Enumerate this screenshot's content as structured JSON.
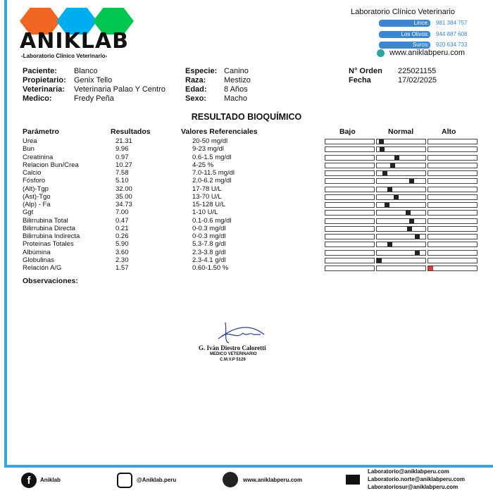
{
  "header": {
    "brand": "ANIKLAB",
    "brand_subtitle": "-Laboratorio Clínico Veterinario-",
    "lab_title": "Laboratorio Clínico Veterinario",
    "branches": [
      {
        "label": "Lince:",
        "phone": "981 384 757"
      },
      {
        "label": "Los Olivos:",
        "phone": "944 887 608"
      },
      {
        "label": "Surco:",
        "phone": "920 634 733"
      }
    ],
    "website": "www.aniklabperu.com",
    "colors": {
      "orange": "#f26522",
      "blue": "#00aeef",
      "green": "#00c64f",
      "accent": "#3fa3dc"
    }
  },
  "patient": {
    "col1": [
      {
        "label": "Paciente:",
        "value": "Blanco"
      },
      {
        "label": "Propietario:",
        "value": "Genix Tello"
      },
      {
        "label": "Veterinaria:",
        "value": "Veterinaria Palao Y Centro"
      },
      {
        "label": "Medico:",
        "value": "Fredy Peña"
      }
    ],
    "col2": [
      {
        "label": "Especie:",
        "value": "Canino"
      },
      {
        "label": "Raza:",
        "value": "Mestizo"
      },
      {
        "label": "Edad:",
        "value": "8 Años"
      },
      {
        "label": "Sexo:",
        "value": "Macho"
      }
    ],
    "col3": [
      {
        "label": "N° Orden",
        "value": "225021155"
      },
      {
        "label": "Fecha",
        "value": "17/02/2025"
      }
    ]
  },
  "report": {
    "title": "RESULTADO BIOQUÍMICO",
    "headers": [
      "Parámetro",
      "Resultados",
      "Valores Referenciales",
      "Bajo",
      "Normal",
      "Alto"
    ],
    "rows": [
      [
        "Urea",
        "21.31",
        "20-50 mg/dl"
      ],
      [
        "Bun",
        "9.96",
        "9-23 mg/dl"
      ],
      [
        "Creatinina",
        "0.97",
        "0.6-1.5 mg/dl"
      ],
      [
        "Relacion Bun/Crea",
        "10.27",
        "4-25 %"
      ],
      [
        "Calcio",
        "7.58",
        "7.0-11.5 mg/dl"
      ],
      [
        "Fósforo",
        "5.10",
        "2.0-6.2 mg/dl"
      ],
      [
        "(Alt)-Tgp",
        "32.00",
        "17-78 U/L"
      ],
      [
        "(Ast)-Tgo",
        "35.00",
        "13-70 U/L"
      ],
      [
        "(Alp) - Fa",
        "34.73",
        "15-128 U/L"
      ],
      [
        "Ggt",
        "7.00",
        "1-10 U/L"
      ],
      [
        "Bilirrubina Total",
        "0.47",
        "0.1-0.6 mg/dl"
      ],
      [
        "Bilirrubina Directa",
        "0.21",
        "0-0.3 mg/dl"
      ],
      [
        "Bilirrubina Indirecta",
        "0.26",
        "0-0.3 mg/dl"
      ],
      [
        "Proteinas Totales",
        "5.90",
        "5.3-7.8 g/dl"
      ],
      [
        "Albúmina",
        "3.60",
        "2.3-3.8 g/dl"
      ],
      [
        "Globulinas",
        "2.30",
        "2.3-4.1 g/dl"
      ],
      [
        "Relación A/G",
        "1.57",
        "0.60-1.50 %"
      ]
    ],
    "observations_label": "Observaciones:",
    "high_color": "#e53935"
  },
  "signature": {
    "name": "G. Iván Diestro Caloretti",
    "role": "MEDICO VETERINARIO",
    "license": "C.M.V.P 5129"
  },
  "footer": {
    "facebook": "Aniklab",
    "instagram": "@Aniklab.peru",
    "website": "www.aniklabperu.com",
    "emails": [
      "Laboratorio@aniklabperu.com",
      "Laboratorio.norte@aniklabperu.com",
      "Laboratoriosur@aniklabperu.com"
    ]
  }
}
